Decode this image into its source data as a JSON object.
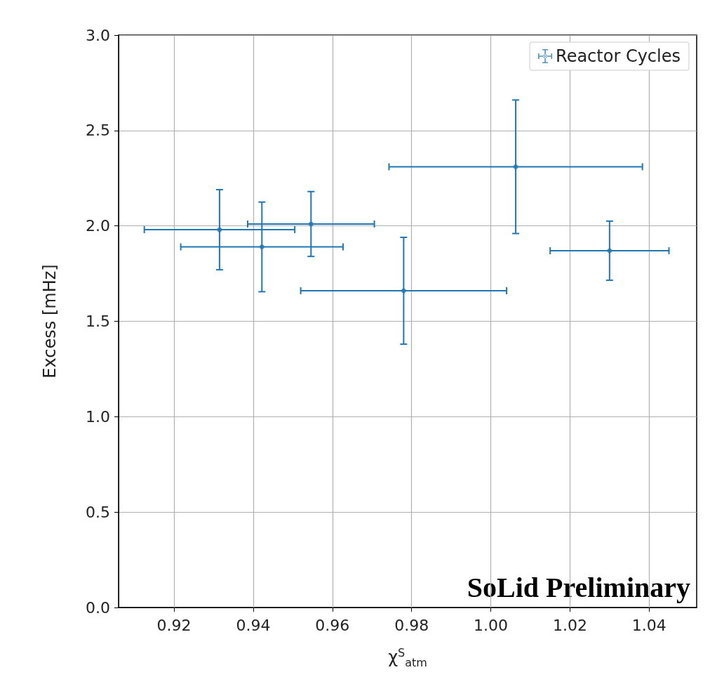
{
  "chart_data": {
    "type": "scatter",
    "xlabel": "χ$^{S}$$_{atm}$",
    "ylabel": "Excess [mHz]",
    "x": [
      0.9315,
      0.9422,
      0.9546,
      0.978,
      1.0063,
      1.03
    ],
    "series": [
      {
        "name": "Reactor Cycles",
        "color": "#1f77b4",
        "values": [
          1.98,
          1.89,
          2.01,
          1.66,
          2.31,
          1.87
        ],
        "errors": [
          0.21,
          0.235,
          0.17,
          0.28,
          0.35,
          0.155
        ],
        "xerrors": [
          0.019,
          0.0205,
          0.016,
          0.026,
          0.032,
          0.015
        ]
      }
    ],
    "xlim": [
      0.906,
      1.052
    ],
    "xticks": [
      0.92,
      0.94,
      0.96,
      0.98,
      {
        "value": 1,
        "label": "1.00"
      },
      1.02,
      1.04
    ],
    "ylim": [
      0,
      3
    ],
    "yticks": [
      {
        "value": 0,
        "label": "0.0"
      },
      0.5,
      {
        "value": 1,
        "label": "1.0"
      },
      1.5,
      {
        "value": 2,
        "label": "2.0"
      },
      2.5,
      {
        "value": 3,
        "label": "3.0"
      }
    ],
    "grid": true,
    "legend": "top right",
    "marker": "circle",
    "annotations": [
      "SoLid Preliminary"
    ]
  }
}
